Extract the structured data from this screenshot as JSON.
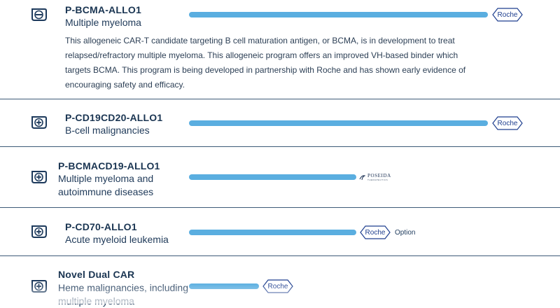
{
  "programs": [
    {
      "title": "P-BCMA-ALLO1",
      "indication": "Multiple myeloma",
      "expanded": true,
      "toggle_icon": "minus-circle-icon",
      "description": "This allogeneic CAR-T candidate targeting B cell maturation antigen, or BCMA, is in development to treat relapsed/refractory multiple myeloma. This allogeneic program offers an improved VH-based binder which targets BCMA. This program is being developed in partnership with Roche and has shown early evidence of encouraging safety and efficacy.",
      "partner": "Roche"
    },
    {
      "title": "P-CD19CD20-ALLO1",
      "indication": "B-cell malignancies",
      "expanded": false,
      "toggle_icon": "plus-circle-icon",
      "partner": "Roche"
    },
    {
      "title": "P-BCMACD19-ALLO1",
      "indication": "Multiple myeloma and autoimmune diseases",
      "indication_line1": "Multiple myeloma and",
      "indication_line2": "autoimmune diseases",
      "expanded": false,
      "toggle_icon": "plus-circle-icon",
      "partner": "POSEIDA",
      "partner_sub": "THERAPEUTICS"
    },
    {
      "title": "P-CD70-ALLO1",
      "indication": "Acute myeloid leukemia",
      "expanded": false,
      "toggle_icon": "plus-circle-icon",
      "partner": "Roche",
      "partner_note": "Option"
    },
    {
      "title": "Novel Dual CAR",
      "indication_line1": "Heme malignancies, including",
      "indication_line2": "multiple myeloma",
      "expanded": false,
      "toggle_icon": "plus-circle-icon",
      "partner": "Roche"
    }
  ],
  "colors": {
    "bar": "#5aaee0",
    "text": "#1a3552",
    "divider": "#3d5a78",
    "roche": "#1f3f8f"
  }
}
